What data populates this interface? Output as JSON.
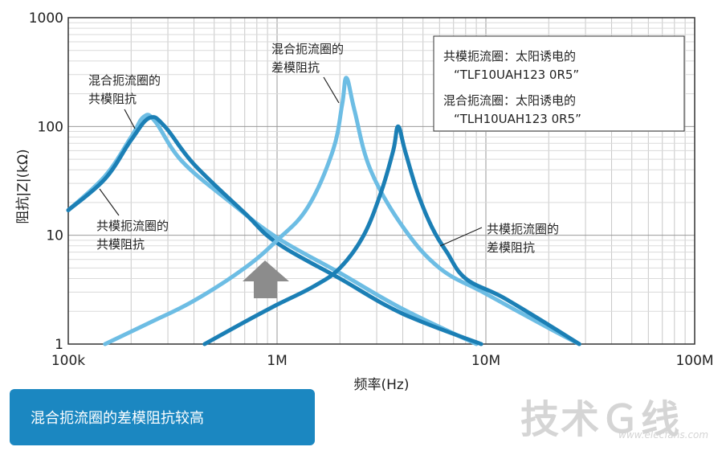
{
  "chart_data": {
    "type": "line",
    "xscale": "log",
    "yscale": "log",
    "xlim": [
      100000,
      100000000
    ],
    "ylim": [
      1,
      1000
    ],
    "xlabel": "频率(Hz)",
    "ylabel": "阻抗|Z|(kΩ)",
    "x_ticks": [
      {
        "value": 100000,
        "label": "100k"
      },
      {
        "value": 1000000,
        "label": "1M"
      },
      {
        "value": 10000000,
        "label": "10M"
      },
      {
        "value": 100000000,
        "label": "100M"
      }
    ],
    "y_ticks": [
      {
        "value": 1,
        "label": "1"
      },
      {
        "value": 10,
        "label": "10"
      },
      {
        "value": 100,
        "label": "100"
      },
      {
        "value": 1000,
        "label": "1000"
      }
    ],
    "grid": true,
    "legend": {
      "line1": "共模扼流圈：太阳诱电的",
      "line2": "“TLF10UAH123 0R5”",
      "line3": "混合扼流圈：太阳诱电的",
      "line4": "“TLH10UAH123 0R5”"
    },
    "series": [
      {
        "id": "mixed_cm",
        "color": "#6dbde4",
        "x": [
          100000,
          150000,
          200000,
          230000,
          260000,
          350000,
          600000,
          1000000,
          2000000,
          4000000,
          9000000
        ],
        "y": [
          17,
          35,
          80,
          123,
          112,
          48,
          20,
          9.5,
          4.5,
          2.1,
          1
        ]
      },
      {
        "id": "common_cm",
        "color": "#1b7fb5",
        "x": [
          100000,
          150000,
          200000,
          245000,
          290000,
          400000,
          700000,
          1000000,
          2000000,
          4000000,
          9500000
        ],
        "y": [
          17,
          33,
          75,
          120,
          100,
          45,
          16,
          8.5,
          4,
          1.9,
          1
        ]
      },
      {
        "id": "mixed_dm",
        "color": "#6dbde4",
        "x": [
          150000,
          250000,
          400000,
          700000,
          1000000,
          1400000,
          1850000,
          2050000,
          2150000,
          2350000,
          2800000,
          4000000,
          6000000,
          10000000,
          20000000,
          28000000
        ],
        "y": [
          1,
          1.6,
          2.5,
          5,
          9,
          18,
          60,
          160,
          280,
          140,
          40,
          12,
          5,
          2.9,
          1.4,
          1
        ]
      },
      {
        "id": "common_dm",
        "color": "#1b7fb5",
        "x": [
          450000,
          700000,
          1000000,
          1500000,
          2000000,
          2600000,
          3150000,
          3600000,
          3800000,
          4100000,
          4700000,
          5500000,
          6500000,
          8000000,
          12000000,
          20000000,
          28000000
        ],
        "y": [
          1,
          1.6,
          2.3,
          3.4,
          5,
          10,
          25,
          60,
          100,
          60,
          25,
          12,
          7,
          4,
          2.7,
          1.5,
          1
        ]
      }
    ],
    "annotations": {
      "mixed_cm_1": "混合扼流圈的",
      "mixed_cm_2": "共模阻抗",
      "mixed_dm_1": "混合扼流圈的",
      "mixed_dm_2": "差模阻抗",
      "common_cm_1": "共模扼流圈的",
      "common_cm_2": "共模阻抗",
      "common_dm_1": "共模扼流圈的",
      "common_dm_2": "差模阻抗"
    }
  },
  "banner": {
    "text": "混合扼流圈的差模阻抗较高"
  },
  "watermark": {
    "main": "技术Ｇ线",
    "sub": "www.elecfans.com"
  }
}
